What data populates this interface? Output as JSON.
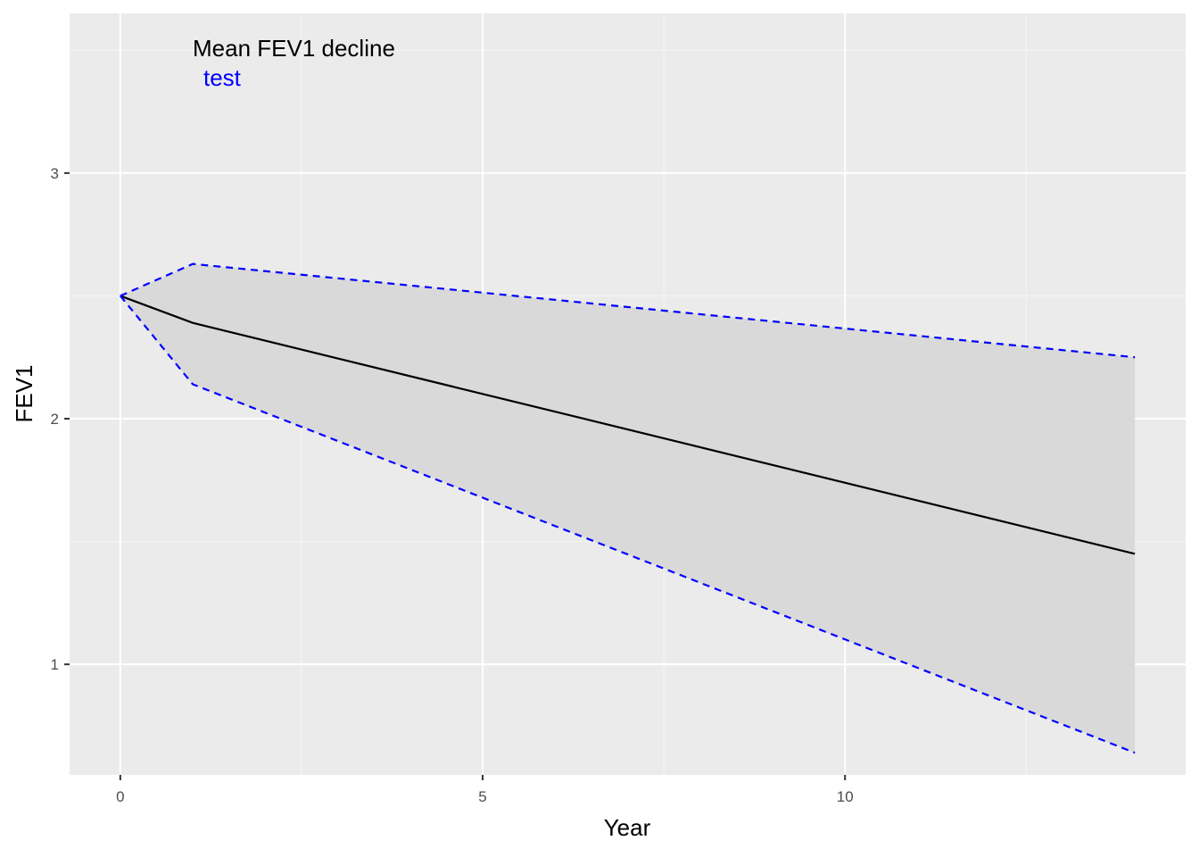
{
  "chart_data": {
    "type": "line",
    "title": "",
    "xlabel": "Year",
    "ylabel": "FEV1",
    "xlim": [
      -0.7,
      14.7
    ],
    "ylim": [
      0.55,
      3.65
    ],
    "x_ticks": [
      0,
      5,
      10
    ],
    "y_ticks": [
      1,
      2,
      3
    ],
    "grid": true,
    "annotations": [
      {
        "text": "Mean FEV1 decline",
        "color": "#000000"
      },
      {
        "text": "test",
        "color": "#0000ff"
      }
    ],
    "x": [
      0,
      1,
      14
    ],
    "series": [
      {
        "role": "mean",
        "values": [
          2.5,
          2.39,
          1.45
        ],
        "color": "#000000",
        "dash": "solid"
      },
      {
        "role": "upper",
        "values": [
          2.5,
          2.63,
          2.25
        ],
        "color": "#0000ff",
        "dash": "dashed"
      },
      {
        "role": "lower",
        "values": [
          2.5,
          2.14,
          0.64
        ],
        "color": "#0000ff",
        "dash": "dashed"
      }
    ],
    "band": {
      "between": [
        "lower",
        "upper"
      ],
      "color": "#d9d9d9"
    }
  },
  "colors": {
    "panel_bg": "#ebebeb",
    "grid_major": "#ffffff",
    "grid_minor": "#f5f5f5",
    "tick": "#333333"
  }
}
